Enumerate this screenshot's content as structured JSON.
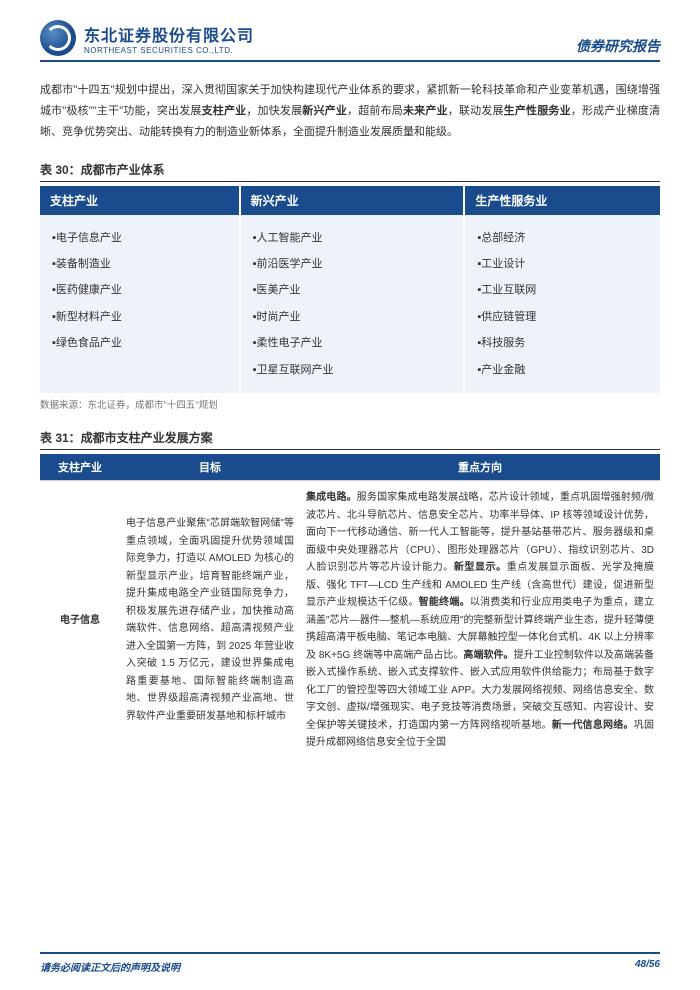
{
  "header": {
    "company_cn": "东北证券股份有限公司",
    "company_en": "NORTHEAST SECURITIES CO.,LTD.",
    "report_type": "债券研究报告"
  },
  "intro": {
    "text_parts": [
      "成都市\"十四五\"规划中提出，深入贯彻国家关于加快构建现代产业体系的要求，紧抓新一轮科技革命和产业变革机遇，围绕增强城市\"极核\"\"主干\"功能，突出发展",
      "支柱产业",
      "，加快发展",
      "新兴产业",
      "，超前布局",
      "未来产业",
      "，联动发展",
      "生产性服务业",
      "，形成产业梯度清晰、竞争优势突出、动能转换有力的制造业新体系，全面提升制造业发展质量和能级。"
    ]
  },
  "table30": {
    "title": "表 30：成都市产业体系",
    "headers": [
      "支柱产业",
      "新兴产业",
      "生产性服务业"
    ],
    "col1": "▪电子信息产业\n▪装备制造业\n▪医药健康产业\n▪新型材料产业\n▪绿色食品产业",
    "col2": "▪人工智能产业\n▪前沿医学产业\n▪医美产业\n▪时尚产业\n▪柔性电子产业\n▪卫星互联网产业",
    "col3": "▪总部经济\n▪工业设计\n▪工业互联网\n▪供应链管理\n▪科技服务\n▪产业金融",
    "source": "数据来源：东北证券，成都市\"十四五\"规划"
  },
  "table31": {
    "title": "表 31：成都市支柱产业发展方案",
    "headers": [
      "支柱产业",
      "目标",
      "重点方向"
    ],
    "row1": {
      "name": "电子信息",
      "goal": "电子信息产业聚焦\"芯屏端软智网储\"等重点领域，全面巩固提升优势领域国际竞争力，打造以 AMOLED 为核心的新型显示产业，培育智能终端产业，提升集成电路全产业链国际竞争力，积极发展先进存储产业，加快推动高端软件、信息网络、超高清视频产业进入全国第一方阵，到 2025 年营业收入突破 1.5 万亿元，建设世界集成电路重要基地、国际智能终端制造高地、世界级超高清视频产业高地、世界软件产业重要研发基地和标杆城市",
      "dir_parts": [
        [
          "集成电路。",
          "服务国家集成电路发展战略，芯片设计领域，重点巩固增强射频/微波芯片、北斗导航芯片、信息安全芯片、功率半导体、IP 核等领域设计优势，面向下一代移动通信、新一代人工智能等，提升基站基带芯片、服务器级和桌面级中央处理器芯片（CPU）、图形处理器芯片（GPU）、指纹识别芯片、3D 人脸识别芯片等芯片设计能力。"
        ],
        [
          "新型显示。",
          "重点发展显示面板、光学及掩膜版、强化 TFT—LCD 生产线和 AMOLED 生产线（含高世代）建设，促进新型显示产业规模达千亿级。"
        ],
        [
          "智能终端。",
          "以消费类和行业应用类电子为重点，建立涵盖\"芯片—器件—整机—系统应用\"的完整新型计算终端产业生态，提升轻薄便携超高清平板电脑、笔记本电脑、大屏幕触控型一体化台式机、4K 以上分辨率及 8K+5G 终端等中高端产品占比。"
        ],
        [
          "高端软件。",
          "提升工业控制软件以及高端装备嵌入式操作系统、嵌入式支撑软件、嵌入式应用软件供给能力；布局基于数字化工厂的管控型等四大领域工业 APP。大力发展网络视频、网络信息安全、数字文创、虚拟/增强现实、电子竞技等消费场景，突破交互感知、内容设计、安全保护等关键技术，打造国内第一方阵网络视听基地。"
        ],
        [
          "新一代信息网络。",
          "巩固提升成都网络信息安全位于全国"
        ]
      ]
    }
  },
  "footer": {
    "left": "请务必阅读正文后的声明及说明",
    "right": "48/56"
  }
}
